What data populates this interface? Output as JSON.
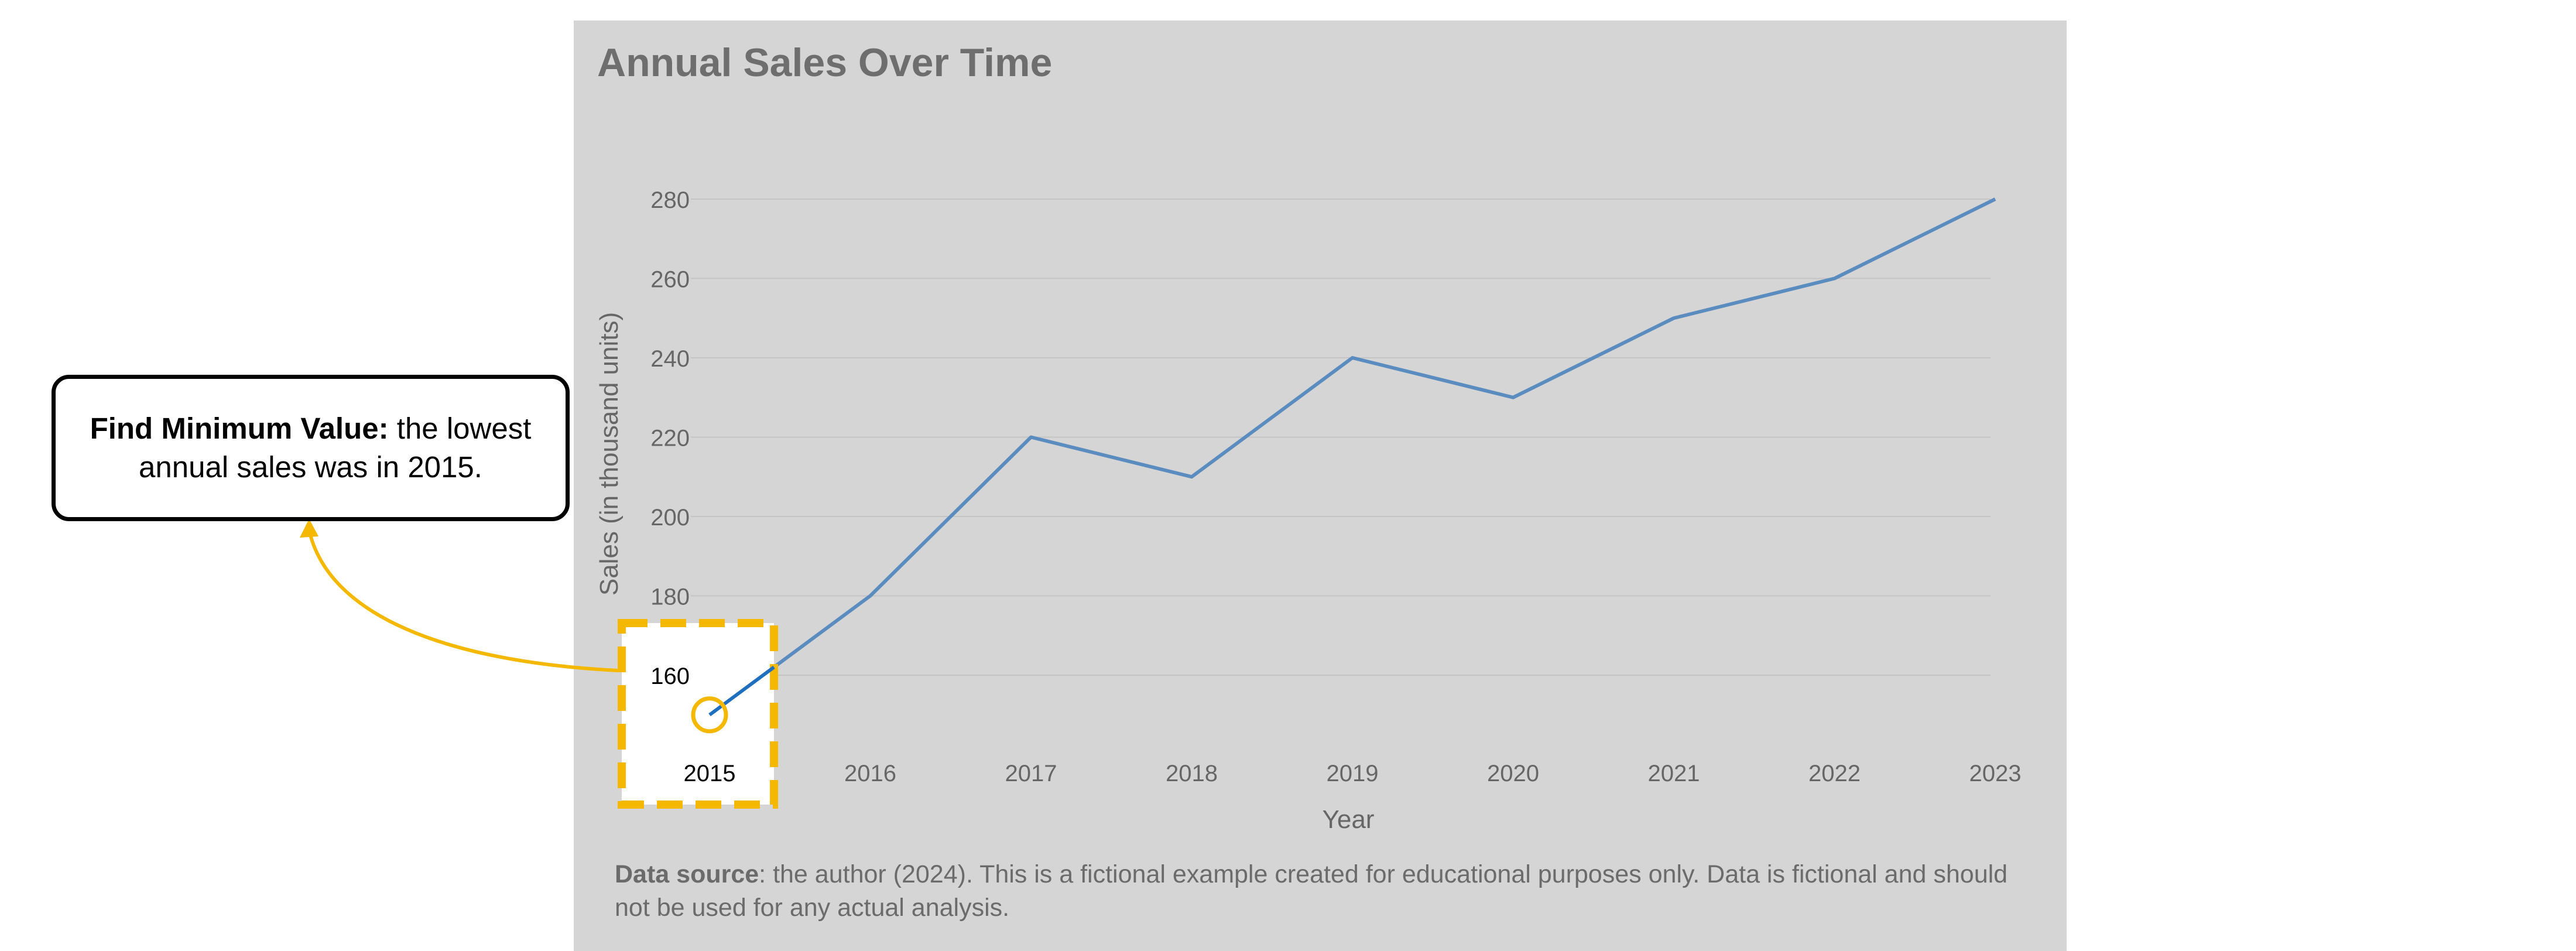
{
  "chart_data": {
    "type": "line",
    "title": "Annual Sales Over Time",
    "xlabel": "Year",
    "ylabel": "Sales (in thousand units)",
    "categories": [
      "2015",
      "2016",
      "2017",
      "2018",
      "2019",
      "2020",
      "2021",
      "2022",
      "2023"
    ],
    "series": [
      {
        "values": [
          150,
          180,
          220,
          210,
          240,
          230,
          250,
          260,
          280
        ]
      }
    ],
    "yticks": [
      160,
      180,
      200,
      220,
      240,
      260,
      280
    ],
    "ylim": [
      150,
      280
    ],
    "grid": true,
    "legend": "none",
    "colors": {
      "background": "#d5d5d5",
      "line": "#5b8cc0",
      "highlight_line": "#1f6fbf",
      "highlight": "#f5b800",
      "gridline": "#c4c4c4",
      "title": "#6e6e6e",
      "axis_text": "#666666"
    }
  },
  "annotation": {
    "bold": "Find Minimum Value:",
    "text": " the lowest annual sales was in 2015.",
    "highlight_category": "2015",
    "highlight_value": 150
  },
  "source": {
    "bold": "Data source",
    "text": ": the author (2024). This is a fictional example created for educational purposes only. Data is fictional and should not be used for any actual analysis."
  }
}
